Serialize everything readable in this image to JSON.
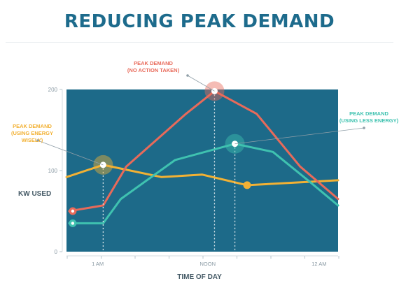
{
  "title": "REDUCING PEAK DEMAND",
  "colors": {
    "title": "#1d6b8c",
    "plot_bg": "#1d6a89",
    "no_action": "#e86a5a",
    "less_energy": "#3fc2b0",
    "wisely": "#f2b134",
    "axis_text": "#8a9aa4",
    "dashes": "#dfe8ec"
  },
  "annotations": {
    "no_action": [
      "PEAK DEMAND",
      "(NO ACTION TAKEN)"
    ],
    "wisely": [
      "PEAK DEMAND",
      "(USING ENERGY WISELY)"
    ],
    "less_energy": [
      "PEAK DEMAND",
      "(USING LESS ENERGY)"
    ]
  },
  "chart_data": {
    "type": "line",
    "title": "REDUCING PEAK DEMAND",
    "xlabel": "TIME OF DAY",
    "ylabel": "KW USED",
    "x_tick_labels": [
      "1 AM",
      "NOON",
      "12 AM"
    ],
    "y_ticks": [
      0,
      100,
      200
    ],
    "ylim": [
      0,
      200
    ],
    "grid": false,
    "series": [
      {
        "key": "no_action",
        "points": [
          [
            0.01,
            50
          ],
          [
            0.135,
            57
          ],
          [
            0.22,
            105
          ],
          [
            0.44,
            170
          ],
          [
            0.545,
            198
          ],
          [
            0.7,
            170
          ],
          [
            0.86,
            105
          ],
          [
            1.0,
            65
          ]
        ],
        "peak_index": 4
      },
      {
        "key": "less_energy",
        "points": [
          [
            0.01,
            35
          ],
          [
            0.135,
            35
          ],
          [
            0.2,
            65
          ],
          [
            0.4,
            113
          ],
          [
            0.62,
            133
          ],
          [
            0.76,
            123
          ],
          [
            0.9,
            85
          ],
          [
            1.0,
            57
          ]
        ],
        "peak_index": 4
      },
      {
        "key": "wisely",
        "points": [
          [
            0.0,
            92
          ],
          [
            0.135,
            107
          ],
          [
            0.35,
            92
          ],
          [
            0.5,
            95
          ],
          [
            0.665,
            82
          ],
          [
            1.0,
            88
          ]
        ],
        "peak_index": 1,
        "marker_index": 4
      }
    ]
  }
}
